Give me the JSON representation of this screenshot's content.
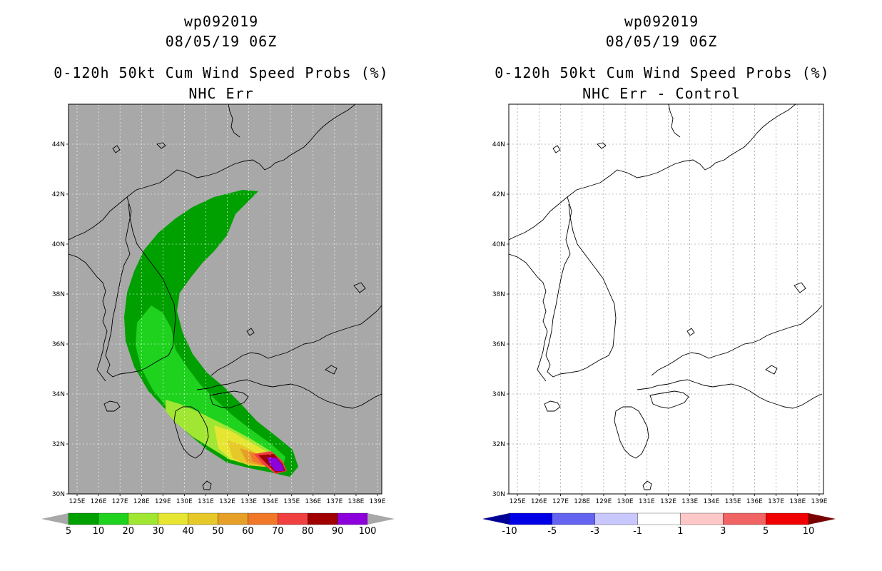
{
  "panels": [
    {
      "storm_id": "wp092019",
      "datetime": "08/05/19 06Z",
      "product": "0-120h 50kt Cum Wind Speed Probs (%)",
      "subtitle": "NHC Err",
      "background": "#a8a8a8",
      "colorbar": {
        "labels": [
          "5",
          "10",
          "20",
          "30",
          "40",
          "50",
          "60",
          "70",
          "80",
          "90",
          "100"
        ],
        "colors": [
          "#00a000",
          "#1ed21e",
          "#a0e632",
          "#e6e632",
          "#e6c828",
          "#e6a028",
          "#f07828",
          "#f04040",
          "#a00000",
          "#8c00dc"
        ],
        "end_colors": [
          "#a8a8a8",
          "#a8a8a8"
        ]
      }
    },
    {
      "storm_id": "wp092019",
      "datetime": "08/05/19 06Z",
      "product": "0-120h 50kt Cum Wind Speed Probs (%)",
      "subtitle": "NHC Err - Control",
      "background": "#ffffff",
      "colorbar": {
        "labels": [
          "-10",
          "-5",
          "-3",
          "-1",
          "1",
          "3",
          "5",
          "10"
        ],
        "colors": [
          "#0000e6",
          "#6464f0",
          "#c8c8ff",
          "#ffffff",
          "#ffc8c8",
          "#f06464",
          "#f00000"
        ],
        "end_colors": [
          "#000096",
          "#780000"
        ]
      }
    }
  ],
  "map": {
    "lon_labels": [
      "125E",
      "126E",
      "127E",
      "128E",
      "129E",
      "130E",
      "131E",
      "132E",
      "133E",
      "134E",
      "135E",
      "136E",
      "137E",
      "138E",
      "139E"
    ],
    "lat_labels": [
      "30N",
      "32N",
      "34N",
      "36N",
      "38N",
      "40N",
      "42N",
      "44N"
    ]
  }
}
